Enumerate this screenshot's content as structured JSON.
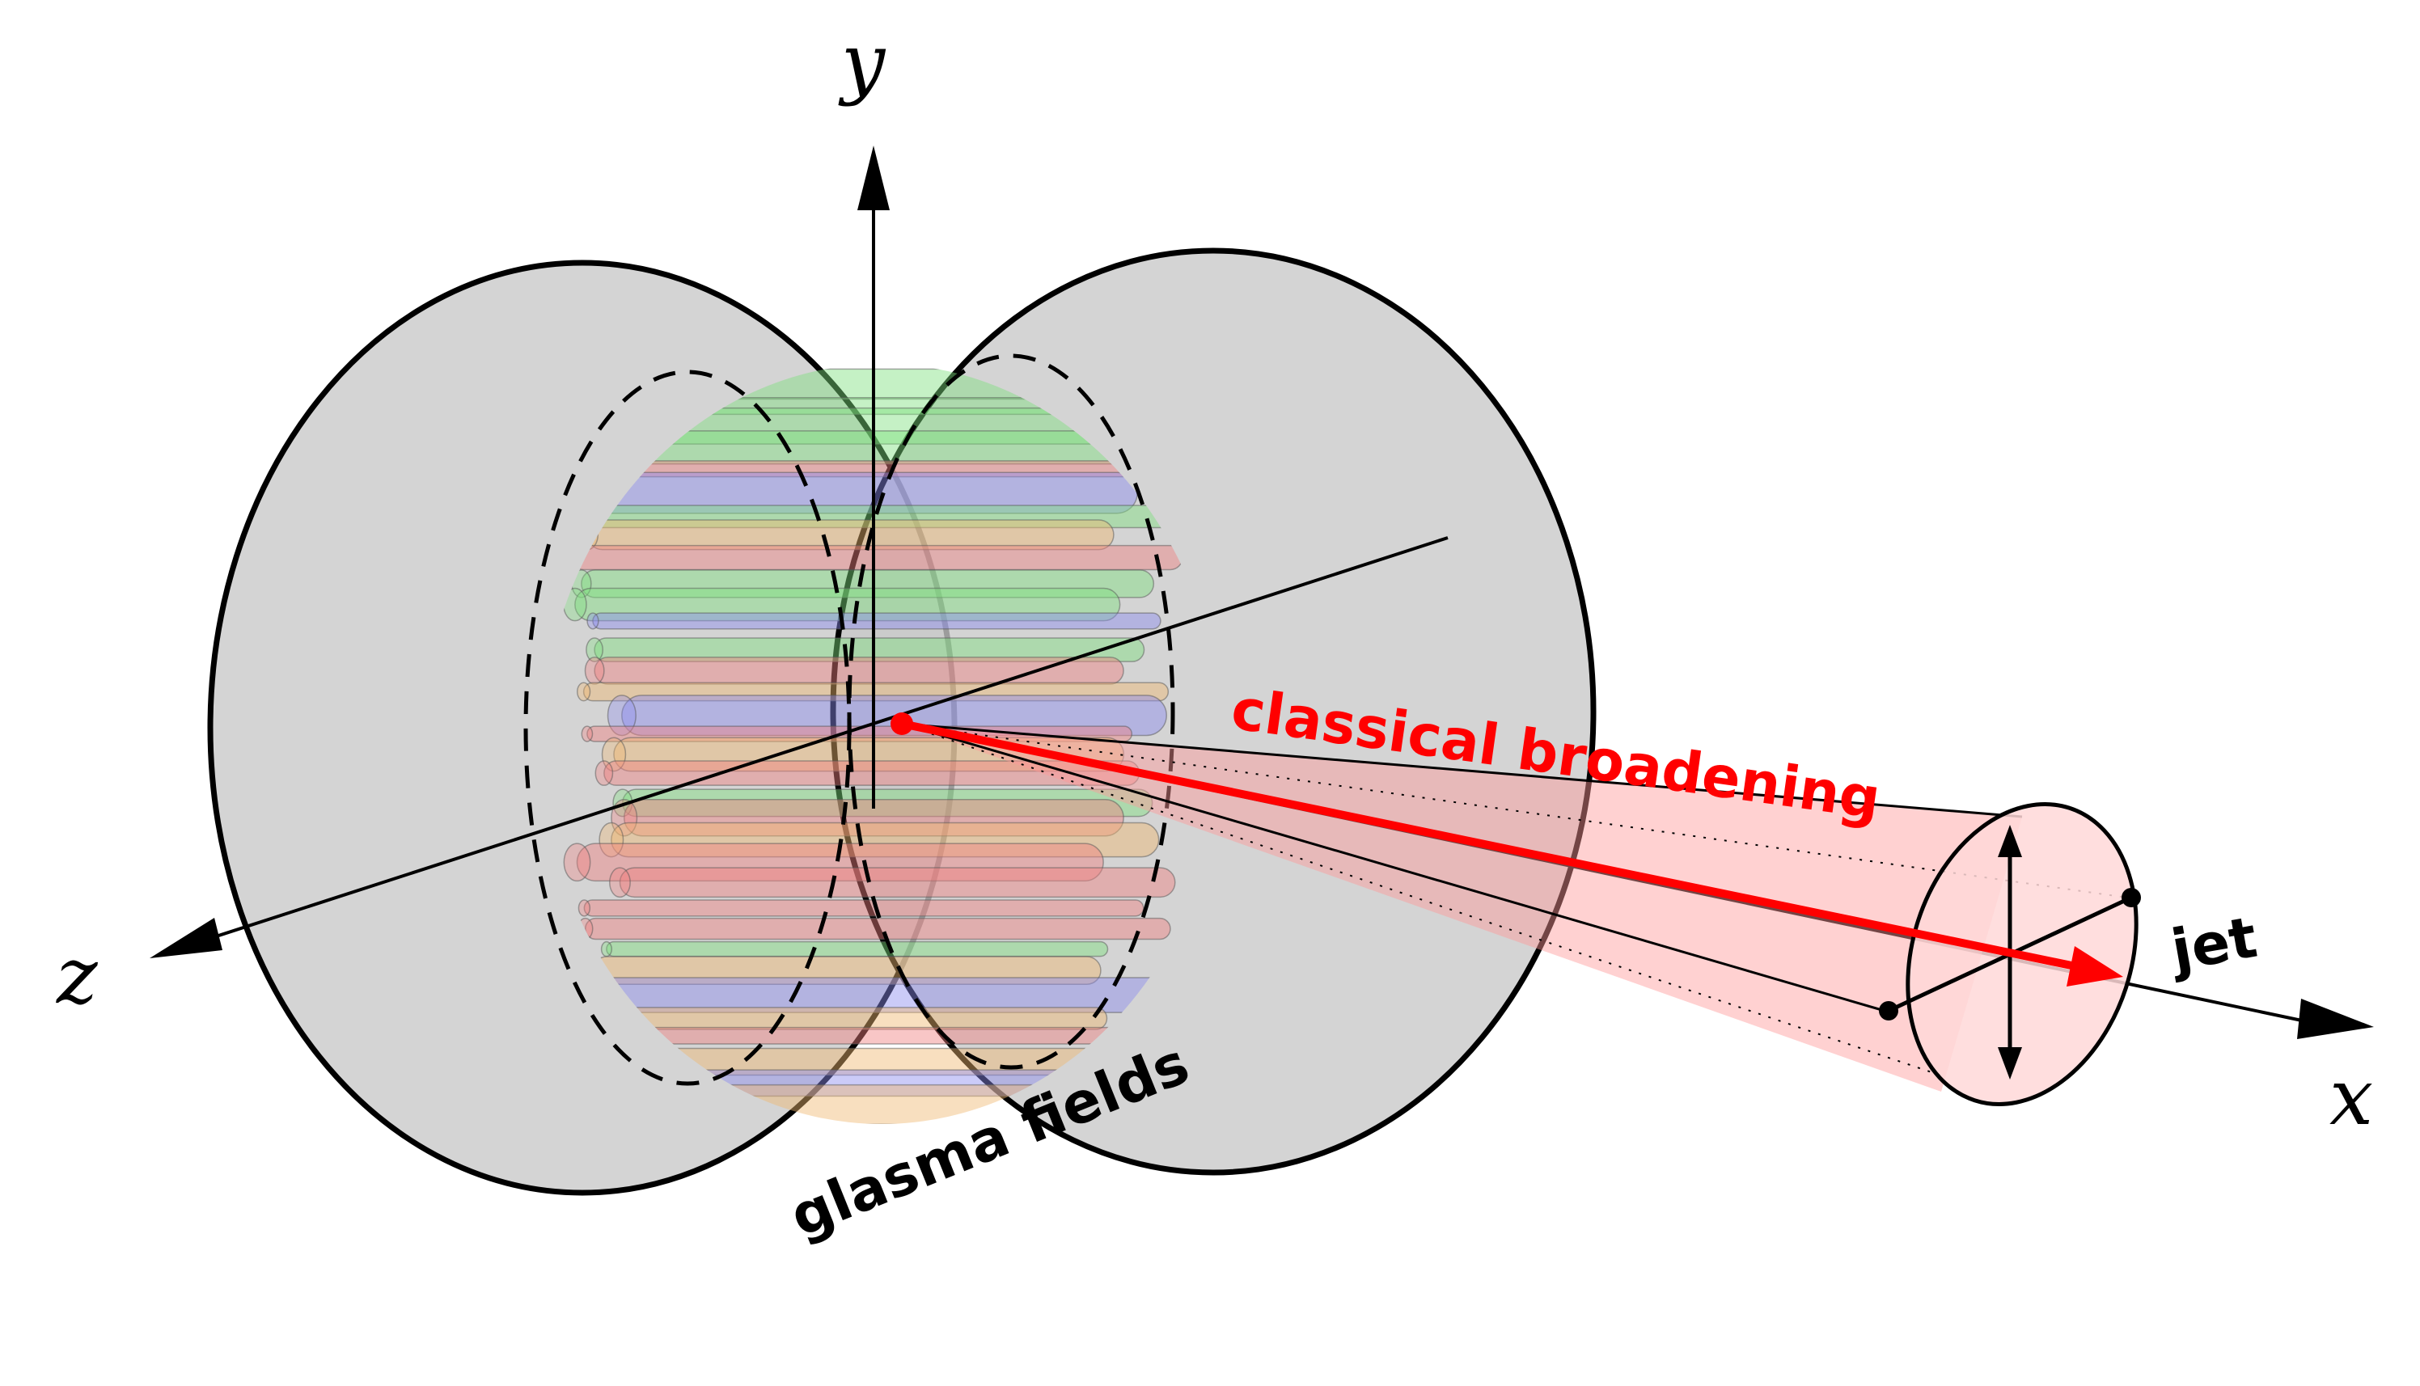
{
  "labels": {
    "axis_y": "y",
    "axis_z": "z",
    "axis_x": "x",
    "glasma": "glasma fields",
    "broadening": "classical broadening",
    "jet": "jet"
  },
  "colors": {
    "disk_fill": "#c8c8c8",
    "outline": "#000000",
    "broadening": "#ff0000",
    "cone_fill": "#ff9a9a",
    "flux_red": "#f08080",
    "flux_green": "#7fe07f",
    "flux_blue": "#8c8cf0",
    "flux_orange": "#f0b870"
  }
}
